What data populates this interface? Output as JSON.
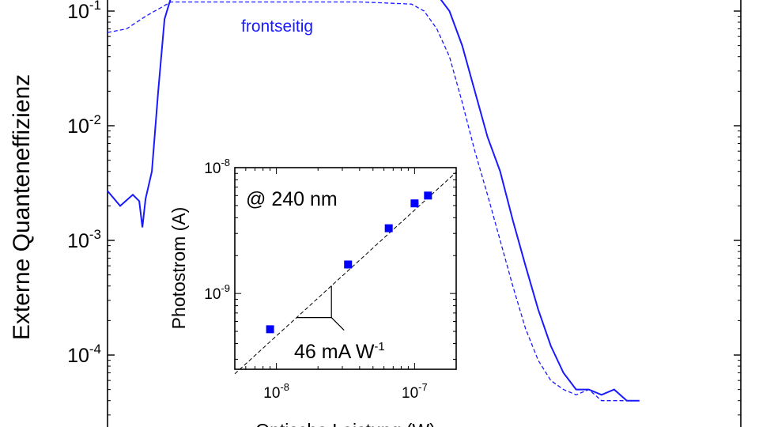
{
  "chart_data": [
    {
      "type": "line",
      "ylabel": "Externe Quanteneffizienz",
      "yscale": "log",
      "ylim": [
        4e-05,
        0.14
      ],
      "x_index_range": [
        0,
        1
      ],
      "y_ticks": [
        {
          "value": 0.1,
          "base": "10",
          "exp": "-1"
        },
        {
          "value": 0.01,
          "base": "10",
          "exp": "-2"
        },
        {
          "value": 0.001,
          "base": "10",
          "exp": "-3"
        },
        {
          "value": 0.0001,
          "base": "10",
          "exp": "-4"
        }
      ],
      "annotations": [
        {
          "text": "frontseitig",
          "color": "#1a1aff"
        }
      ],
      "series": [
        {
          "style": "solid",
          "color": "#1a1aff",
          "x": [
            0.0,
            0.02,
            0.04,
            0.05,
            0.055,
            0.06,
            0.07,
            0.08,
            0.09,
            0.1,
            0.12,
            0.15,
            0.2,
            0.3,
            0.4,
            0.5,
            0.52,
            0.54,
            0.56,
            0.58,
            0.6,
            0.62,
            0.64,
            0.66,
            0.68,
            0.7,
            0.72,
            0.74,
            0.76,
            0.78,
            0.8,
            0.82,
            0.84
          ],
          "y": [
            0.0027,
            0.002,
            0.0025,
            0.0022,
            0.0013,
            0.0023,
            0.004,
            0.02,
            0.085,
            0.13,
            0.14,
            0.14,
            0.14,
            0.14,
            0.14,
            0.14,
            0.14,
            0.1,
            0.05,
            0.02,
            0.008,
            0.004,
            0.0015,
            0.0006,
            0.00025,
            0.00012,
            7e-05,
            5e-05,
            5e-05,
            4.5e-05,
            5e-05,
            4e-05,
            4e-05
          ]
        },
        {
          "name": "frontseitig",
          "style": "dashed",
          "color": "#1a1aff",
          "x": [
            0.0,
            0.03,
            0.06,
            0.1,
            0.15,
            0.2,
            0.3,
            0.4,
            0.48,
            0.5,
            0.52,
            0.54,
            0.56,
            0.58,
            0.6,
            0.62,
            0.64,
            0.66,
            0.68,
            0.7,
            0.72,
            0.74,
            0.76,
            0.78,
            0.8,
            0.82
          ],
          "y": [
            0.065,
            0.07,
            0.09,
            0.12,
            0.12,
            0.12,
            0.12,
            0.12,
            0.115,
            0.1,
            0.07,
            0.04,
            0.016,
            0.006,
            0.0025,
            0.001,
            0.0004,
            0.00017,
            9e-05,
            6e-05,
            5e-05,
            4.5e-05,
            5e-05,
            4e-05,
            4e-05,
            4e-05
          ]
        }
      ]
    },
    {
      "type": "scatter",
      "xlabel": "Optische Leistung (W)",
      "ylabel": "Photostrom (A)",
      "xscale": "log",
      "yscale": "log",
      "xlim": [
        5e-09,
        2e-07
      ],
      "ylim": [
        2.5e-10,
        1e-08
      ],
      "x_ticks": [
        {
          "value": 1e-08,
          "base": "10",
          "exp": "-8"
        },
        {
          "value": 1e-07,
          "base": "10",
          "exp": "-7"
        }
      ],
      "y_ticks": [
        {
          "value": 1e-09,
          "base": "10",
          "exp": "-9"
        },
        {
          "value": 1e-08,
          "base": "10",
          "exp": "-8"
        }
      ],
      "annotations": [
        {
          "text": "@ 240 nm"
        },
        {
          "text": "46 mA W",
          "sup": "-1"
        }
      ],
      "series": [
        {
          "color": "#0000ff",
          "x": [
            9e-09,
            3.3e-08,
            6.5e-08,
            1e-07,
            1.25e-07
          ],
          "y": [
            5.2e-10,
            1.7e-09,
            3.3e-09,
            5.2e-09,
            6e-09
          ]
        }
      ],
      "fit_line": {
        "slope_A_per_W": 0.046
      }
    }
  ]
}
